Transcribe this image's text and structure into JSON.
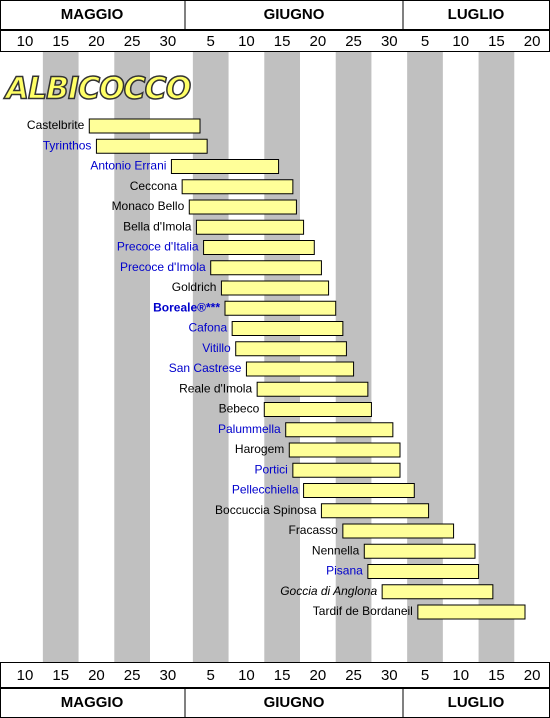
{
  "chart_data": {
    "type": "gantt",
    "title": "ALBICOCCO",
    "months": [
      "MAGGIO",
      "GIUGNO",
      "LUGLIO"
    ],
    "xlim": [
      6.5,
      83.5
    ],
    "xticks": [
      10,
      15,
      20,
      25,
      30,
      {
        "value": 36,
        "label": "5"
      },
      {
        "value": 41,
        "label": "10"
      },
      {
        "value": 46,
        "label": "15"
      },
      {
        "value": 51,
        "label": "20"
      },
      {
        "value": 56,
        "label": "25"
      },
      {
        "value": 61,
        "label": "30"
      },
      {
        "value": 66,
        "label": "5"
      },
      {
        "value": 71,
        "label": "10"
      },
      {
        "value": 76,
        "label": "15"
      },
      {
        "value": 81,
        "label": "20"
      }
    ],
    "bar_color": "#ffff99",
    "tasks": [
      {
        "name": "Castelbrite",
        "start": 19,
        "end": 34.5,
        "color": "#000000",
        "style": "normal"
      },
      {
        "name": "Tyrinthos",
        "start": 20,
        "end": 35.5,
        "color": "#0000cc",
        "style": "normal"
      },
      {
        "name": "Antonio Errani",
        "start": 30.5,
        "end": 45.5,
        "color": "#0000cc",
        "style": "normal"
      },
      {
        "name": "Ceccona",
        "start": 32,
        "end": 47.5,
        "color": "#000000",
        "style": "normal"
      },
      {
        "name": "Monaco Bello",
        "start": 33,
        "end": 48,
        "color": "#000000",
        "style": "normal"
      },
      {
        "name": "Bella d'Imola",
        "start": 34,
        "end": 49,
        "color": "#000000",
        "style": "normal"
      },
      {
        "name": "Precoce d'Italia",
        "start": 35,
        "end": 50.5,
        "color": "#0000cc",
        "style": "normal"
      },
      {
        "name": "Precoce d'Imola",
        "start": 36,
        "end": 51.5,
        "color": "#0000cc",
        "style": "normal"
      },
      {
        "name": "Goldrich",
        "start": 37.5,
        "end": 52.5,
        "color": "#000000",
        "style": "normal"
      },
      {
        "name": "Boreale®***",
        "start": 38,
        "end": 53.5,
        "color": "#0000cc",
        "style": "bold"
      },
      {
        "name": "Cafona",
        "start": 39,
        "end": 54.5,
        "color": "#0000cc",
        "style": "normal"
      },
      {
        "name": "Vitillo",
        "start": 39.5,
        "end": 55,
        "color": "#0000cc",
        "style": "normal"
      },
      {
        "name": "San Castrese",
        "start": 41,
        "end": 56,
        "color": "#0000cc",
        "style": "normal"
      },
      {
        "name": "Reale d'Imola",
        "start": 42.5,
        "end": 58,
        "color": "#000000",
        "style": "normal"
      },
      {
        "name": "Bebeco",
        "start": 43.5,
        "end": 58.5,
        "color": "#000000",
        "style": "normal"
      },
      {
        "name": "Palummella",
        "start": 46.5,
        "end": 61.5,
        "color": "#0000cc",
        "style": "normal"
      },
      {
        "name": "Harogem",
        "start": 47,
        "end": 62.5,
        "color": "#000000",
        "style": "normal"
      },
      {
        "name": "Portici",
        "start": 47.5,
        "end": 62.5,
        "color": "#0000cc",
        "style": "normal"
      },
      {
        "name": "Pellecchiella",
        "start": 49,
        "end": 64.5,
        "color": "#0000cc",
        "style": "normal"
      },
      {
        "name": "Boccuccia Spinosa",
        "start": 51.5,
        "end": 66.5,
        "color": "#000000",
        "style": "normal"
      },
      {
        "name": "Fracasso",
        "start": 54.5,
        "end": 70,
        "color": "#000000",
        "style": "normal"
      },
      {
        "name": "Nennella",
        "start": 57.5,
        "end": 73,
        "color": "#000000",
        "style": "normal"
      },
      {
        "name": "Pisana",
        "start": 58,
        "end": 73.5,
        "color": "#0000cc",
        "style": "normal"
      },
      {
        "name": "Goccia di Anglona",
        "start": 60,
        "end": 75.5,
        "color": "#000000",
        "style": "italic"
      },
      {
        "name": "Tardif de Bordaneil",
        "start": 65,
        "end": 80,
        "color": "#000000",
        "style": "normal"
      }
    ]
  }
}
